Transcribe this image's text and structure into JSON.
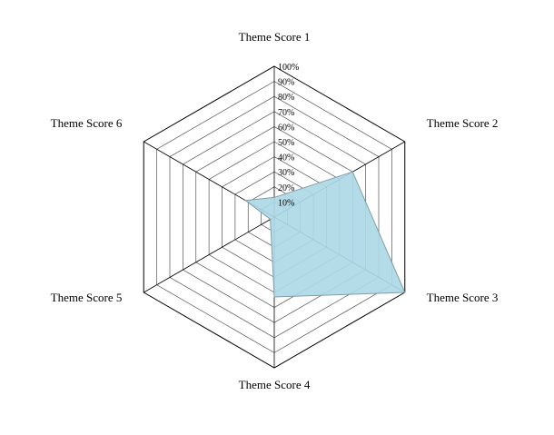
{
  "chart_data": {
    "type": "radar",
    "axes": [
      "Theme Score 1",
      "Theme Score 2",
      "Theme Score 3",
      "Theme Score 4",
      "Theme Score 5",
      "Theme Score 6"
    ],
    "series": [
      {
        "values": [
          0.13,
          0.6,
          1.0,
          0.53,
          0.03,
          0.22
        ]
      }
    ],
    "ticks": [
      "10%",
      "20%",
      "30%",
      "40%",
      "50%",
      "60%",
      "70%",
      "80%",
      "90%",
      "100%"
    ],
    "range": [
      0,
      1
    ],
    "fill_color": "#add8e6",
    "stroke_color": "#7f9fa8"
  }
}
